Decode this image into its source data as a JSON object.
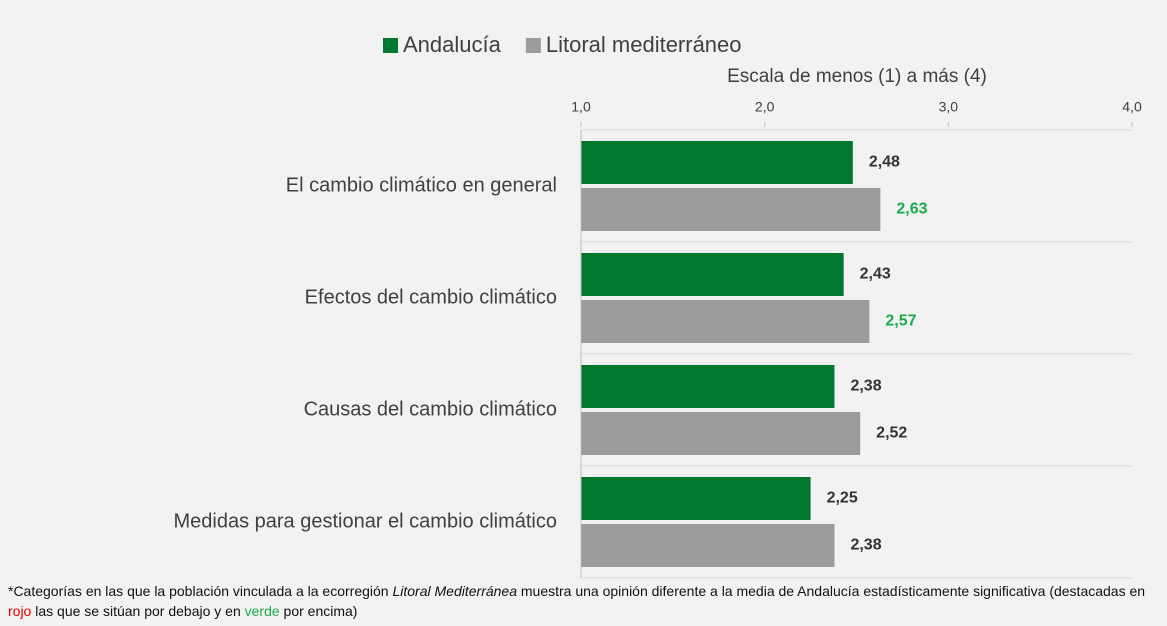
{
  "chart_data": {
    "type": "hbar",
    "axis_label": "Escala de menos (1) a más (4)",
    "categories": [
      "El cambio climático en general",
      "Efectos del cambio climático",
      "Causas del cambio climático",
      "Medidas para gestionar el cambio climático"
    ],
    "series": [
      {
        "name": "Andalucía",
        "color": "#00782f",
        "values": [
          2.48,
          2.43,
          2.38,
          2.25
        ],
        "value_labels": [
          "2,48",
          "2,43",
          "2,38",
          "2,25"
        ],
        "label_colors": [
          "#333333",
          "#333333",
          "#333333",
          "#333333"
        ]
      },
      {
        "name": "Litoral mediterráneo",
        "color": "#9b9b9b",
        "values": [
          2.63,
          2.57,
          2.52,
          2.38
        ],
        "value_labels": [
          "2,63",
          "2,57",
          "2,52",
          "2,38"
        ],
        "label_colors": [
          "#1aab4b",
          "#1aab4b",
          "#333333",
          "#333333"
        ]
      }
    ],
    "xlim": [
      1,
      4
    ],
    "xticks": [
      {
        "value": 1,
        "label": "1,0"
      },
      {
        "value": 2,
        "label": "2,0"
      },
      {
        "value": 3,
        "label": "3,0"
      },
      {
        "value": 4,
        "label": "4,0"
      }
    ],
    "legend": "top",
    "footnote": [
      "*Categorías en las que la población vinculada a la ecorregión ",
      "Litoral Mediterránea",
      " muestra una opinión diferente a la media de Andalucía estadísticamente significativa (destacadas en ",
      "rojo",
      " las que se sitúan por debajo y en ",
      "verde",
      " por encima)"
    ]
  }
}
